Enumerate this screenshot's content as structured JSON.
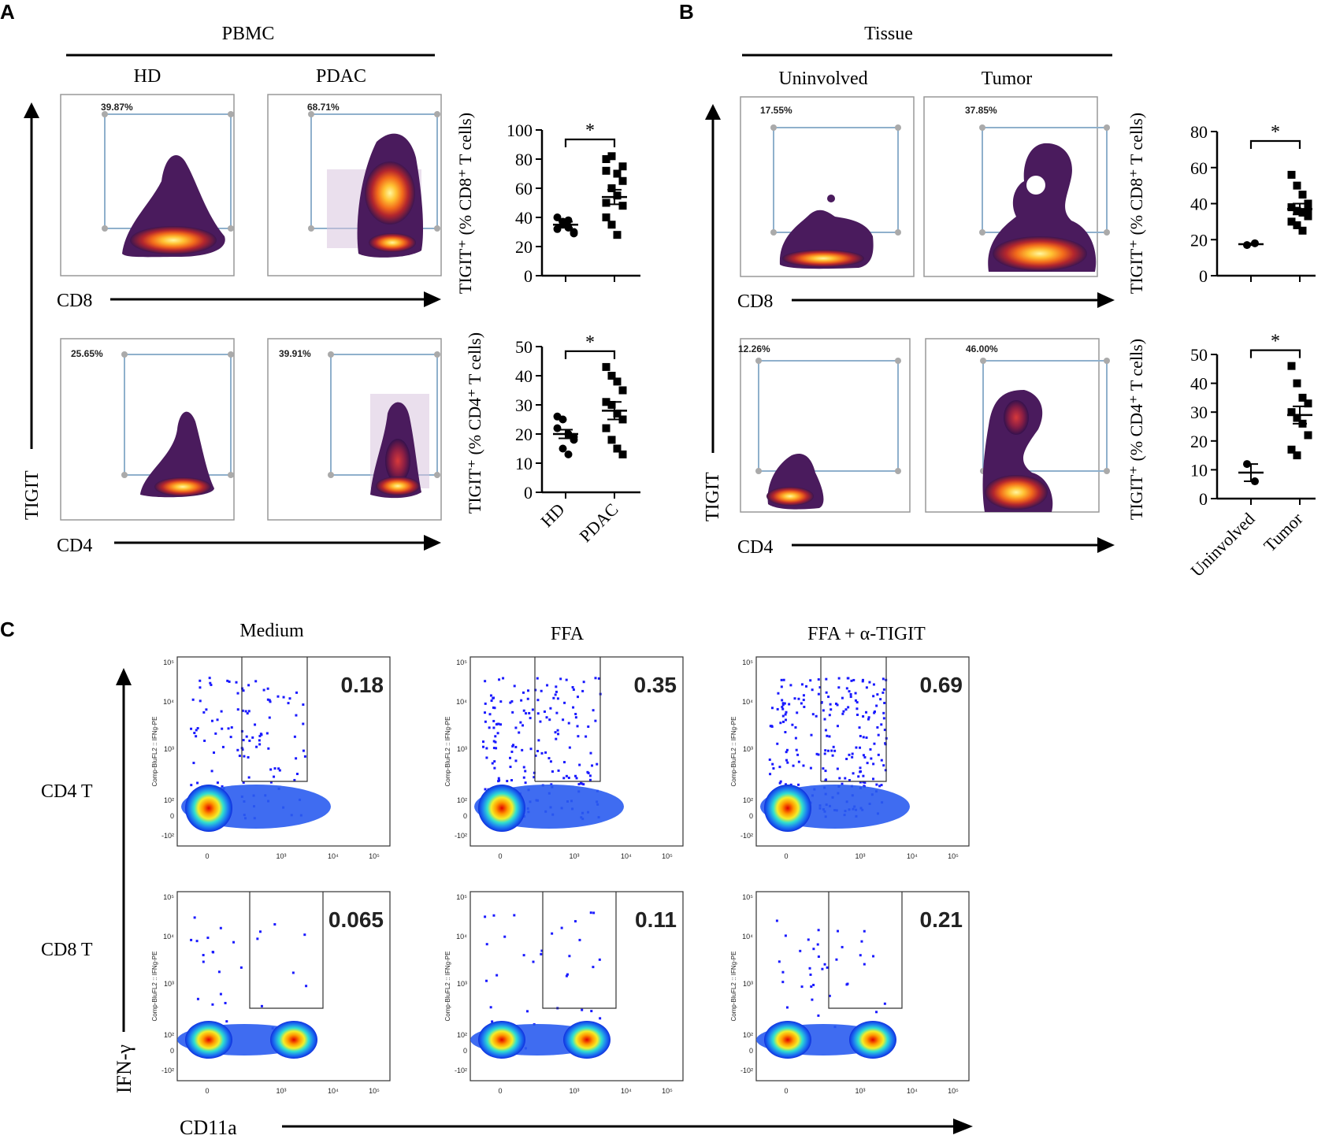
{
  "panels": {
    "A": {
      "letter": "A",
      "group_title": "PBMC",
      "columns": [
        "HD",
        "PDAC"
      ],
      "x_axis_top": "CD8",
      "x_axis_bottom": "CD4",
      "y_axis": "TIGIT",
      "gate_percents": {
        "cd8": [
          "39.87%",
          "68.71%"
        ],
        "cd4": [
          "25.65%",
          "39.91%"
        ]
      }
    },
    "B": {
      "letter": "B",
      "group_title": "Tissue",
      "columns": [
        "Uninvolved",
        "Tumor"
      ],
      "x_axis_top": "CD8",
      "x_axis_bottom": "CD4",
      "y_axis": "TIGIT",
      "gate_percents": {
        "cd8": [
          "17.55%",
          "37.85%"
        ],
        "cd4": [
          "12.26%",
          "46.00%"
        ]
      }
    },
    "C": {
      "letter": "C",
      "columns": [
        "Medium",
        "FFA",
        "FFA + α-TIGIT"
      ],
      "rows": [
        "CD4 T",
        "CD8 T"
      ],
      "y_axis": "IFN-γ",
      "x_axis": "CD11a",
      "plot_axis_label": "Comp-BluFL2 :: IFNg-PE",
      "gate_values": {
        "cd4": [
          "0.18",
          "0.35",
          "0.69"
        ],
        "cd8": [
          "0.065",
          "0.11",
          "0.21"
        ]
      },
      "y_ticks": [
        "10⁵",
        "10⁴",
        "10³",
        "10²",
        "0",
        "-10²"
      ],
      "x_ticks": [
        "0",
        "10³",
        "10⁴",
        "10⁵"
      ]
    }
  },
  "chart_data": [
    {
      "type": "scatter",
      "id": "A-cd8",
      "title": "",
      "ylabel": "TIGIT⁺ (% CD8⁺ T cells)",
      "categories": [
        "HD",
        "PDAC"
      ],
      "ylim": [
        0,
        100
      ],
      "yticks": [
        0,
        20,
        40,
        60,
        80,
        100
      ],
      "significance": "*",
      "series": [
        {
          "name": "HD",
          "marker": "circle",
          "values": [
            32,
            35,
            38,
            29,
            40,
            37,
            33,
            30
          ],
          "mean": 35,
          "sem": 2
        },
        {
          "name": "PDAC",
          "marker": "square",
          "values": [
            80,
            82,
            70,
            65,
            72,
            60,
            55,
            48,
            40,
            35,
            28,
            75,
            50
          ],
          "mean": 54,
          "sem": 5
        }
      ]
    },
    {
      "type": "scatter",
      "id": "A-cd4",
      "title": "",
      "ylabel": "TIGIT⁺ (% CD4⁺ T cells)",
      "categories": [
        "HD",
        "PDAC"
      ],
      "ylim": [
        0,
        50
      ],
      "yticks": [
        0,
        10,
        20,
        30,
        40,
        50
      ],
      "significance": "*",
      "series": [
        {
          "name": "HD",
          "marker": "circle",
          "values": [
            26,
            25,
            20,
            18,
            22,
            15,
            13,
            19
          ],
          "mean": 20,
          "sem": 1.5
        },
        {
          "name": "PDAC",
          "marker": "square",
          "values": [
            43,
            40,
            38,
            35,
            31,
            30,
            27,
            25,
            22,
            18,
            15,
            13
          ],
          "mean": 28,
          "sem": 3
        }
      ]
    },
    {
      "type": "scatter",
      "id": "B-cd8",
      "title": "",
      "ylabel": "TIGIT⁺ (% CD8⁺ T cells)",
      "categories": [
        "Uninvolved",
        "Tumor"
      ],
      "ylim": [
        0,
        80
      ],
      "yticks": [
        0,
        20,
        40,
        60,
        80
      ],
      "significance": "*",
      "series": [
        {
          "name": "Uninvolved",
          "marker": "circle",
          "values": [
            17,
            18
          ],
          "mean": 17.5,
          "sem": 0.5
        },
        {
          "name": "Tumor",
          "marker": "square",
          "values": [
            56,
            50,
            45,
            40,
            38,
            36,
            35,
            33,
            30,
            28,
            25,
            37
          ],
          "mean": 37,
          "sem": 3
        }
      ]
    },
    {
      "type": "scatter",
      "id": "B-cd4",
      "title": "",
      "ylabel": "TIGIT⁺ (% CD4⁺ T cells)",
      "categories": [
        "Uninvolved",
        "Tumor"
      ],
      "ylim": [
        0,
        50
      ],
      "yticks": [
        0,
        10,
        20,
        30,
        40,
        50
      ],
      "significance": "*",
      "series": [
        {
          "name": "Uninvolved",
          "marker": "circle",
          "values": [
            12,
            6
          ],
          "mean": 9,
          "sem": 3
        },
        {
          "name": "Tumor",
          "marker": "square",
          "values": [
            46,
            40,
            35,
            33,
            30,
            28,
            26,
            22,
            17,
            15
          ],
          "mean": 29,
          "sem": 3
        }
      ]
    }
  ]
}
